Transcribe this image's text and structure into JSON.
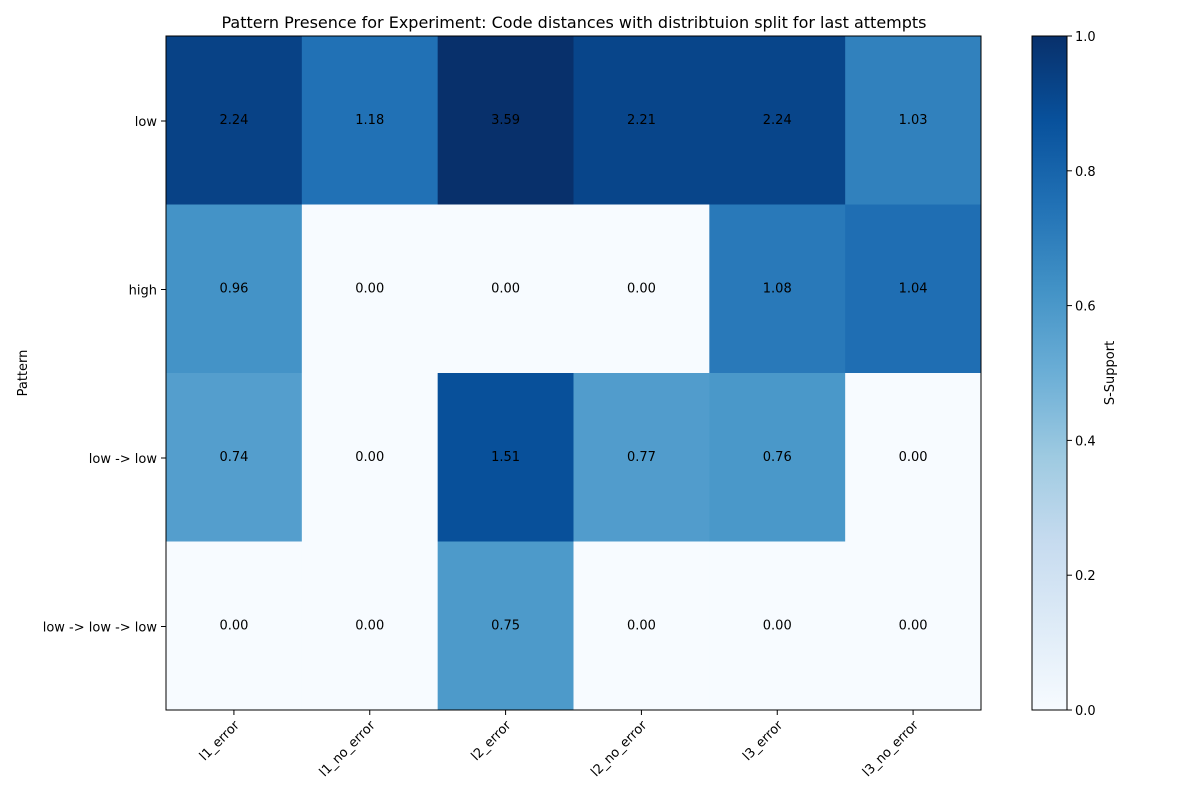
{
  "chart_data": {
    "type": "heatmap",
    "title": "Pattern Presence for Experiment: Code distances with distribtuion split for last attempts",
    "xlabel": "",
    "ylabel": "Pattern",
    "x_categories": [
      "l1_error",
      "l1_no_error",
      "l2_error",
      "l2_no_error",
      "l3_error",
      "l3_no_error"
    ],
    "y_categories": [
      "low",
      "high",
      "low -> low",
      "low -> low -> low"
    ],
    "cell_labels": [
      [
        "2.24",
        "1.18",
        "3.59",
        "2.21",
        "2.24",
        "1.03"
      ],
      [
        "0.96",
        "0.00",
        "0.00",
        "0.00",
        "1.08",
        "1.04"
      ],
      [
        "0.74",
        "0.00",
        "1.51",
        "0.77",
        "0.76",
        "0.00"
      ],
      [
        "0.00",
        "0.00",
        "0.75",
        "0.00",
        "0.00",
        "0.00"
      ]
    ],
    "color_values": [
      [
        0.93,
        0.75,
        1.0,
        0.92,
        0.92,
        0.69
      ],
      [
        0.62,
        0.0,
        0.0,
        0.0,
        0.72,
        0.76
      ],
      [
        0.57,
        0.0,
        0.88,
        0.58,
        0.6,
        0.0
      ],
      [
        0.0,
        0.0,
        0.59,
        0.0,
        0.0,
        0.0
      ]
    ],
    "colorbar": {
      "label": "S-Support",
      "range": [
        0.0,
        1.0
      ],
      "ticks": [
        "0.0",
        "0.2",
        "0.4",
        "0.6",
        "0.8",
        "1.0"
      ],
      "colormap": "Blues",
      "color_stops": [
        "#f7fbff",
        "#deebf7",
        "#c6dbef",
        "#9ecae1",
        "#6baed6",
        "#4292c6",
        "#2171b5",
        "#08519c",
        "#08306b"
      ]
    },
    "grid": false
  }
}
